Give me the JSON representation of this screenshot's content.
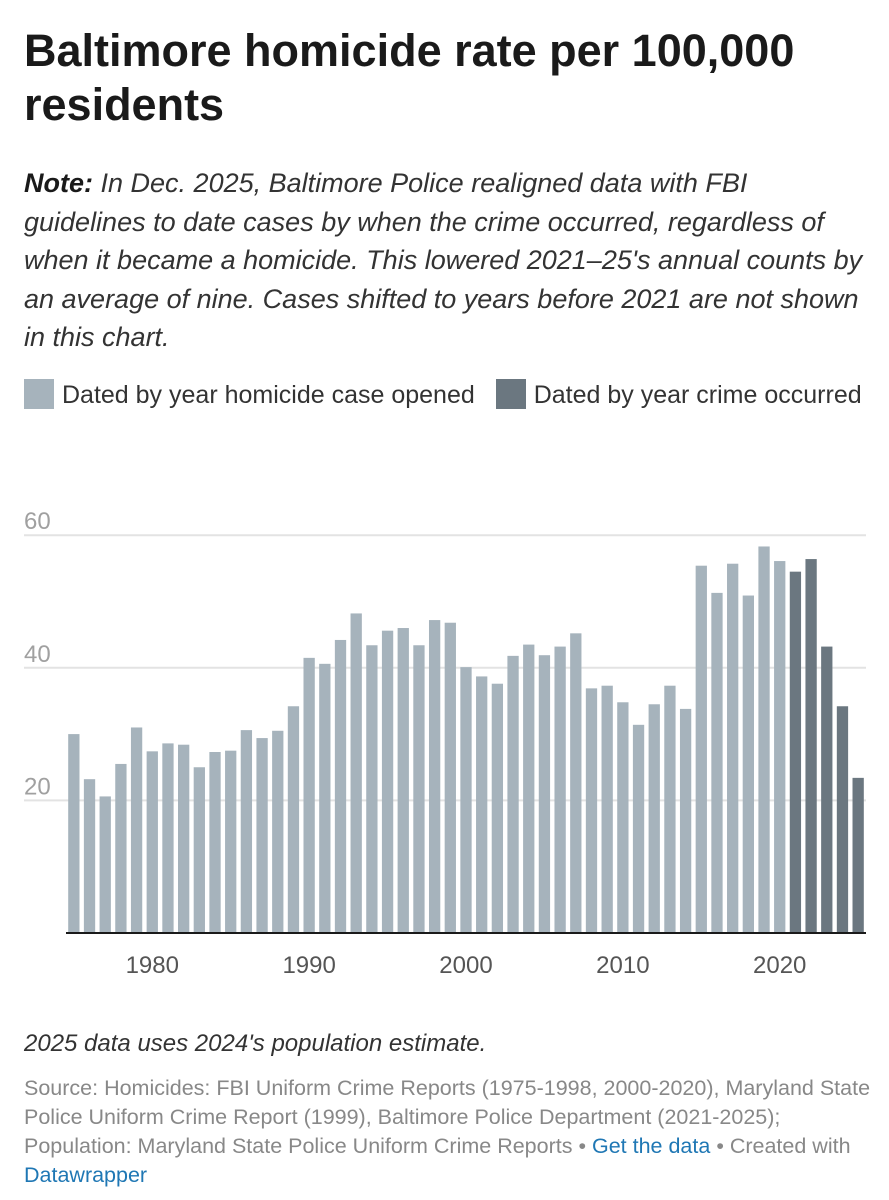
{
  "header": {
    "title": "Baltimore homicide rate per 100,000 residents",
    "note_label": "Note:",
    "note_text": "In Dec. 2025, Baltimore Police realigned data with FBI guidelines to date cases by when the crime occurred, regardless of when it became a homicide. This lowered 2021–25's annual counts by an average of nine. Cases shifted to years before 2021 are not shown in this chart."
  },
  "legend": {
    "items": [
      {
        "label": "Dated by year homicide case opened",
        "color": "#a6b3bc"
      },
      {
        "label": "Dated by year crime occurred",
        "color": "#6b7780"
      }
    ]
  },
  "chart_data": {
    "type": "bar",
    "x_start": 1975,
    "x_end": 2025,
    "x_ticks": [
      1980,
      1990,
      2000,
      2010,
      2020
    ],
    "y_ticks": [
      20,
      40,
      60
    ],
    "ylim": [
      0,
      60
    ],
    "grid": true,
    "series": [
      {
        "name": "Dated by year homicide case opened",
        "color": "#a6b3bc",
        "x": [
          1975,
          1976,
          1977,
          1978,
          1979,
          1980,
          1981,
          1982,
          1983,
          1984,
          1985,
          1986,
          1987,
          1988,
          1989,
          1990,
          1991,
          1992,
          1993,
          1994,
          1995,
          1996,
          1997,
          1998,
          1999,
          2000,
          2001,
          2002,
          2003,
          2004,
          2005,
          2006,
          2007,
          2008,
          2009,
          2010,
          2011,
          2012,
          2013,
          2014,
          2015,
          2016,
          2017,
          2018,
          2019,
          2020
        ],
        "values": [
          30,
          23.2,
          20.6,
          25.5,
          31,
          27.4,
          28.6,
          28.4,
          25,
          27.3,
          27.5,
          30.6,
          29.4,
          30.5,
          34.2,
          41.5,
          40.6,
          44.2,
          48.2,
          43.4,
          45.6,
          46,
          43.4,
          47.2,
          46.8,
          40.1,
          38.7,
          37.6,
          41.8,
          43.5,
          41.9,
          43.2,
          45.2,
          36.9,
          37.3,
          34.8,
          31.4,
          34.5,
          37.3,
          33.8,
          55.4,
          51.3,
          55.7,
          50.9,
          58.3,
          56.1
        ]
      },
      {
        "name": "Dated by year crime occurred",
        "color": "#6b7780",
        "x": [
          2021,
          2022,
          2023,
          2024,
          2025
        ],
        "values": [
          54.5,
          56.4,
          43.2,
          34.2,
          23.4
        ]
      }
    ]
  },
  "footer": {
    "footnote": "2025 data uses 2024's population estimate.",
    "source_text": "Source: Homicides: FBI Uniform Crime Reports (1975-1998, 2000-2020), Maryland State Police Uniform Crime Report (1999), Baltimore Police Department (2021-2025); Population: Maryland State Police Uniform Crime Reports",
    "separator": "•",
    "get_data_link": "Get the data",
    "created_with_prefix": "Created with",
    "datawrapper_link": "Datawrapper"
  }
}
